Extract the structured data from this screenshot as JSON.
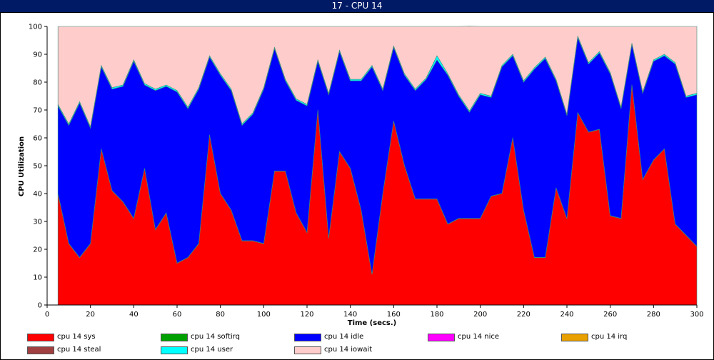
{
  "window": {
    "title": "17 - CPU 14"
  },
  "chart_data": {
    "type": "area",
    "stacked": true,
    "title": "17 - CPU 14",
    "xlabel": "Time (secs.)",
    "ylabel": "CPU Utilization",
    "xlim": [
      0,
      300
    ],
    "ylim": [
      0,
      100
    ],
    "x_ticks": [
      0,
      20,
      40,
      60,
      80,
      100,
      120,
      140,
      160,
      180,
      200,
      220,
      240,
      260,
      280,
      300
    ],
    "y_ticks": [
      0,
      10,
      20,
      30,
      40,
      50,
      60,
      70,
      80,
      90,
      100
    ],
    "x": [
      5,
      10,
      15,
      20,
      25,
      30,
      35,
      40,
      45,
      50,
      55,
      60,
      65,
      70,
      75,
      80,
      85,
      90,
      95,
      100,
      105,
      110,
      115,
      120,
      125,
      130,
      135,
      140,
      145,
      150,
      155,
      160,
      165,
      170,
      175,
      180,
      185,
      190,
      195,
      200,
      205,
      210,
      215,
      220,
      225,
      230,
      235,
      240,
      245,
      250,
      255,
      260,
      265,
      270,
      275,
      280,
      285,
      290,
      295,
      300
    ],
    "series": [
      {
        "name": "cpu 14 sys",
        "color": "#ff0000",
        "values": [
          40,
          22,
          17,
          22,
          56,
          41,
          37,
          31,
          49,
          27,
          33,
          15,
          17,
          22,
          61,
          40,
          34,
          23,
          23,
          22,
          48,
          48,
          33,
          26,
          70,
          24,
          55,
          49,
          34,
          11,
          40,
          66,
          50,
          38,
          38,
          38,
          29,
          31,
          31,
          31,
          39,
          40,
          60,
          34,
          17,
          17,
          42,
          31,
          69,
          62,
          63,
          32,
          31,
          79,
          45,
          52,
          56,
          29,
          25,
          21
        ]
      },
      {
        "name": "cpu 14 softirq",
        "color": "#00a000",
        "values": [
          0.1,
          0.1,
          0.1,
          0.1,
          0.1,
          0.1,
          0.1,
          0.1,
          0.1,
          0.1,
          0.1,
          0.1,
          0.1,
          0.1,
          0.1,
          0.1,
          0.1,
          0.1,
          0.1,
          0.1,
          0.1,
          0.1,
          0.1,
          0.1,
          0.1,
          0.1,
          0.1,
          0.1,
          0.1,
          0.1,
          0.1,
          0.1,
          0.1,
          0.1,
          0.1,
          0.1,
          0.1,
          0.1,
          0.1,
          0.1,
          0.1,
          0.1,
          0.1,
          0.1,
          0.1,
          0.1,
          0.1,
          0.1,
          0.1,
          0.1,
          0.1,
          0.1,
          0.1,
          0.1,
          0.1,
          0.1,
          0.1,
          0.1,
          0.1,
          0.1
        ]
      },
      {
        "name": "cpu 14 idle",
        "color": "#0000ff",
        "values": [
          31.4,
          42.4,
          55.4,
          41.4,
          29.4,
          36.4,
          41.4,
          56.4,
          29.9,
          49.9,
          45.4,
          61.4,
          53.4,
          55.4,
          27.9,
          42.4,
          42.9,
          41.4,
          45.4,
          55.4,
          43.9,
          32.4,
          40.4,
          45.4,
          17.4,
          51.4,
          35.9,
          31.4,
          46.4,
          74.4,
          36.9,
          26.4,
          32.4,
          38.9,
          42.9,
          49.9,
          53.4,
          43.9,
          38.1,
          44.4,
          35.4,
          45.4,
          29.4,
          45.9,
          67.6,
          71.4,
          38.4,
          36.9,
          26.9,
          24.4,
          27.4,
          50.9,
          39.4,
          14.4,
          30.9,
          35.4,
          33.4,
          57.4,
          49.4,
          54.4
        ]
      },
      {
        "name": "cpu 14 nice",
        "color": "#ff00ff",
        "values": [
          0,
          0,
          0,
          0,
          0,
          0,
          0,
          0,
          0,
          0,
          0,
          0,
          0,
          0,
          0,
          0,
          0,
          0,
          0,
          0,
          0,
          0,
          0,
          0,
          0,
          0,
          0,
          0,
          0,
          0,
          0,
          0,
          0,
          0,
          0,
          0,
          0,
          0,
          0,
          0,
          0,
          0,
          0,
          0,
          0,
          0,
          0,
          0,
          0,
          0,
          0,
          0,
          0,
          0,
          0,
          0,
          0,
          0,
          0,
          0
        ]
      },
      {
        "name": "cpu 14 irq",
        "color": "#e8a000",
        "values": [
          0,
          0,
          0,
          0,
          0,
          0,
          0,
          0,
          0,
          0,
          0,
          0,
          0,
          0,
          0,
          0,
          0,
          0,
          0,
          0,
          0,
          0,
          0,
          0,
          0,
          0,
          0,
          0,
          0,
          0,
          0,
          0,
          0,
          0,
          0,
          0,
          0,
          0,
          0,
          0,
          0,
          0,
          0,
          0,
          0,
          0,
          0,
          0,
          0,
          0,
          0,
          0,
          0,
          0,
          0,
          0,
          0,
          0,
          0,
          0
        ]
      },
      {
        "name": "cpu 14 steal",
        "color": "#a04040",
        "values": [
          0,
          0,
          0,
          0,
          0,
          0,
          0,
          0,
          0,
          0,
          0,
          0,
          0,
          0,
          0,
          0,
          0,
          0,
          0,
          0,
          0,
          0,
          0,
          0,
          0,
          0,
          0,
          0,
          0,
          0,
          0,
          0,
          0,
          0,
          0,
          0,
          0,
          0,
          0,
          0,
          0,
          0,
          0,
          0,
          0,
          0,
          0,
          0,
          0,
          0,
          0,
          0,
          0,
          0,
          0,
          0,
          0,
          0,
          0,
          0
        ]
      },
      {
        "name": "cpu 14 user",
        "color": "#00ffff",
        "values": [
          0.5,
          0.5,
          0.5,
          0.5,
          0.5,
          0.5,
          0.5,
          0.5,
          0.5,
          0.5,
          0.5,
          0.5,
          0.5,
          0.5,
          0.5,
          0.5,
          0.5,
          0.5,
          0.5,
          0.5,
          0.5,
          0.5,
          0.5,
          0.5,
          0.5,
          0.5,
          0.5,
          0.5,
          0.5,
          0.5,
          0.5,
          0.5,
          0.5,
          0.5,
          0.5,
          1.5,
          0.5,
          0.5,
          0.5,
          0.5,
          0.5,
          0.5,
          0.5,
          0.5,
          0.5,
          0.5,
          0.5,
          0.5,
          0.5,
          0.5,
          0.5,
          0.5,
          0.5,
          0.5,
          0.5,
          0.5,
          0.5,
          0.5,
          0.5,
          0.5
        ]
      },
      {
        "name": "cpu 14 iowait",
        "color": "#ffcccc",
        "values": [
          28,
          35,
          27,
          36,
          14,
          22,
          21,
          12,
          20.5,
          22.5,
          21,
          23,
          29,
          22,
          10.5,
          17,
          22.5,
          35,
          31,
          22,
          7.5,
          19,
          26,
          28,
          12,
          24,
          8.5,
          19,
          19,
          14,
          22.5,
          7,
          17,
          22.5,
          18.5,
          10.5,
          17,
          24.5,
          30.4,
          24,
          25,
          14,
          10,
          19.5,
          14.8,
          11,
          19,
          31.5,
          3.5,
          13,
          9,
          16.5,
          29,
          6,
          23.5,
          12,
          10,
          13,
          25,
          24
        ]
      }
    ],
    "legend": {
      "position": "bottom",
      "columns": 5
    },
    "grid": false
  }
}
